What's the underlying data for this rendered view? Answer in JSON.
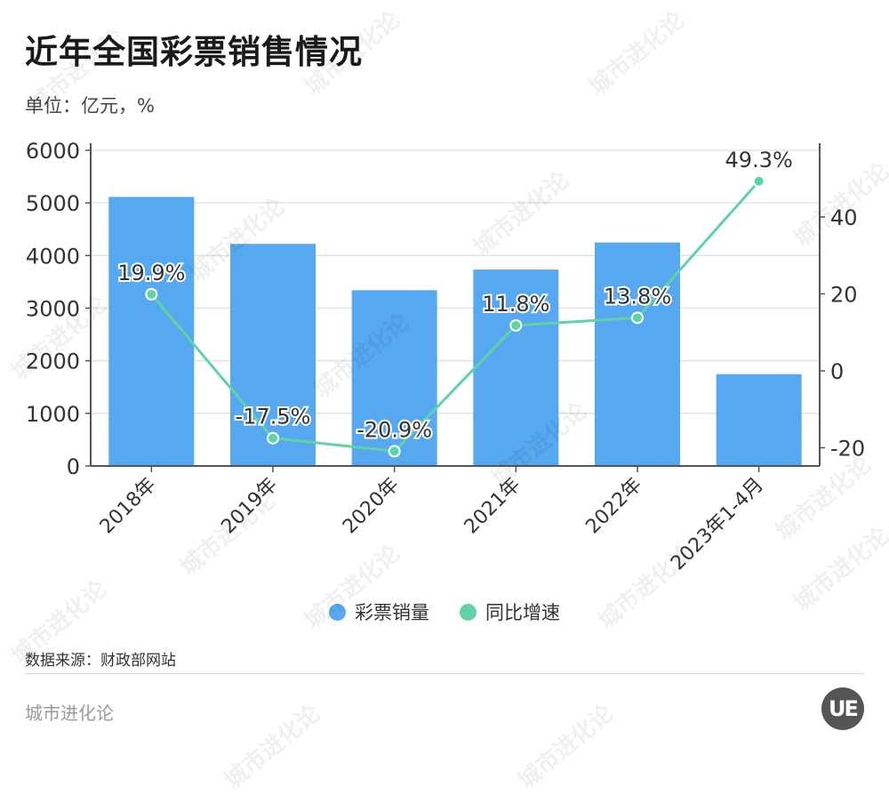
{
  "header": {
    "title": "近年全国彩票销售情况",
    "unit": "单位：亿元，%"
  },
  "legend": [
    {
      "label": "彩票销量",
      "color": "#56a8f0"
    },
    {
      "label": "同比增速",
      "color": "#5ed3a3"
    }
  ],
  "footer": {
    "source": "数据来源：财政部网站",
    "brand": "城市进化论",
    "logo": "UE"
  },
  "watermark": "城市进化论",
  "chart_data": {
    "type": "bar",
    "title": "近年全国彩票销售情况",
    "subtitle": "单位：亿元，%",
    "categories": [
      "2018年",
      "2019年",
      "2020年",
      "2021年",
      "2022年",
      "2023年1-4月"
    ],
    "series": [
      {
        "name": "彩票销量",
        "type": "bar",
        "axis": "left",
        "color": "#56a8f0",
        "values": [
          5114,
          4221,
          3340,
          3733,
          4247,
          1745
        ]
      },
      {
        "name": "同比增速",
        "type": "line",
        "axis": "right",
        "color": "#5ed3a3",
        "values": [
          19.9,
          -17.5,
          -20.9,
          11.8,
          13.8,
          49.3
        ],
        "labels": [
          "19.9%",
          "-17.5%",
          "-20.9%",
          "11.8%",
          "13.8%",
          "49.3%"
        ]
      }
    ],
    "left_axis": {
      "ticks": [
        0,
        1000,
        2000,
        3000,
        4000,
        5000,
        6000
      ],
      "ylim": [
        0,
        6000
      ]
    },
    "right_axis": {
      "ticks": [
        -20,
        0,
        20,
        40
      ],
      "ylim": [
        -24.5,
        57.5
      ]
    },
    "grid": true,
    "legend_position": "bottom",
    "xlabel": "",
    "ylabel": "亿元"
  }
}
